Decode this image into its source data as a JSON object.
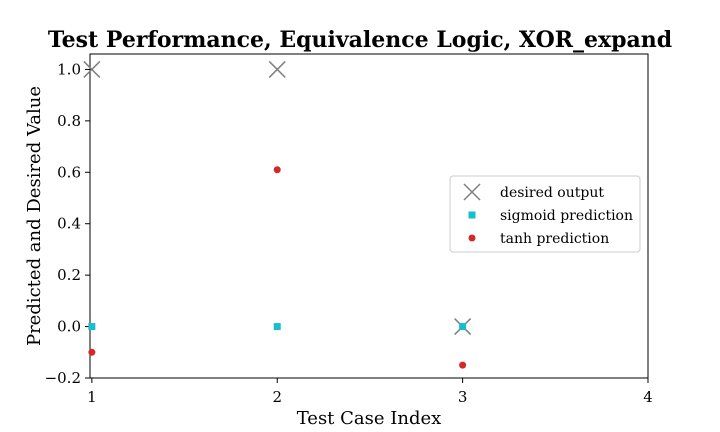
{
  "chart_data": {
    "type": "scatter",
    "title": "Test Performance, Equivalence Logic, XOR_expand",
    "xlabel": "Test Case Index",
    "ylabel": "Predicted and Desired Value",
    "xlim": [
      0.99,
      4.0
    ],
    "ylim": [
      -0.2,
      1.06
    ],
    "xticks": [
      "1",
      "2",
      "3",
      "4"
    ],
    "yticks": [
      "−0.2",
      "0.0",
      "0.2",
      "0.4",
      "0.6",
      "0.8",
      "1.0"
    ],
    "grid": false,
    "legend_position": "center-right",
    "series": [
      {
        "name": "desired output",
        "marker": "x",
        "color": "#7f7f7f",
        "x": [
          1,
          2,
          3
        ],
        "y": [
          1.0,
          1.0,
          0.0
        ]
      },
      {
        "name": "sigmoid prediction",
        "marker": "square",
        "color": "#17becf",
        "x": [
          1,
          2,
          3
        ],
        "y": [
          0.0,
          0.0,
          0.0
        ]
      },
      {
        "name": "tanh prediction",
        "marker": "circle",
        "color": "#d62728",
        "x": [
          1,
          2,
          3
        ],
        "y": [
          -0.1,
          0.61,
          -0.15
        ]
      }
    ]
  }
}
